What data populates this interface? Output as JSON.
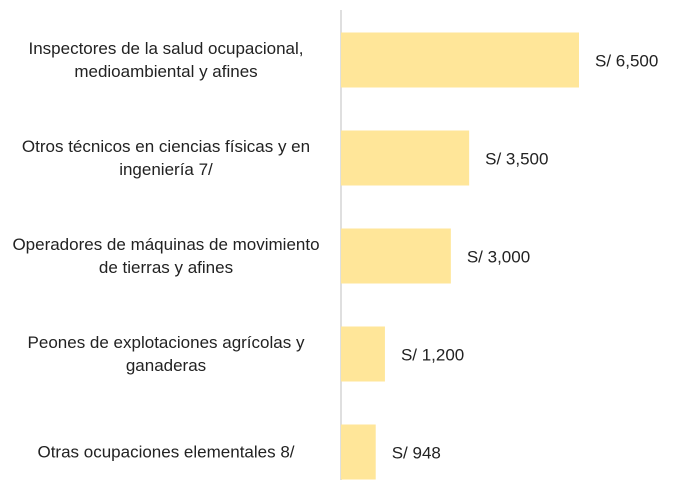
{
  "chart_data": {
    "type": "bar",
    "orientation": "horizontal",
    "categories": [
      "Inspectores de la salud ocupacional, medioambiental y afines",
      "Otros técnicos en ciencias físicas y en ingeniería 7/",
      "Operadores de máquinas de movimiento de tierras y afines",
      "Peones de explotaciones agrícolas y ganaderas",
      "Otras ocupaciones elementales 8/"
    ],
    "values": [
      6500,
      3500,
      3000,
      1200,
      948
    ],
    "value_labels": [
      "S/ 6,500",
      "S/ 3,500",
      "S/ 3,000",
      "S/ 1,200",
      "S/ 948"
    ],
    "color": "#ffe699"
  }
}
